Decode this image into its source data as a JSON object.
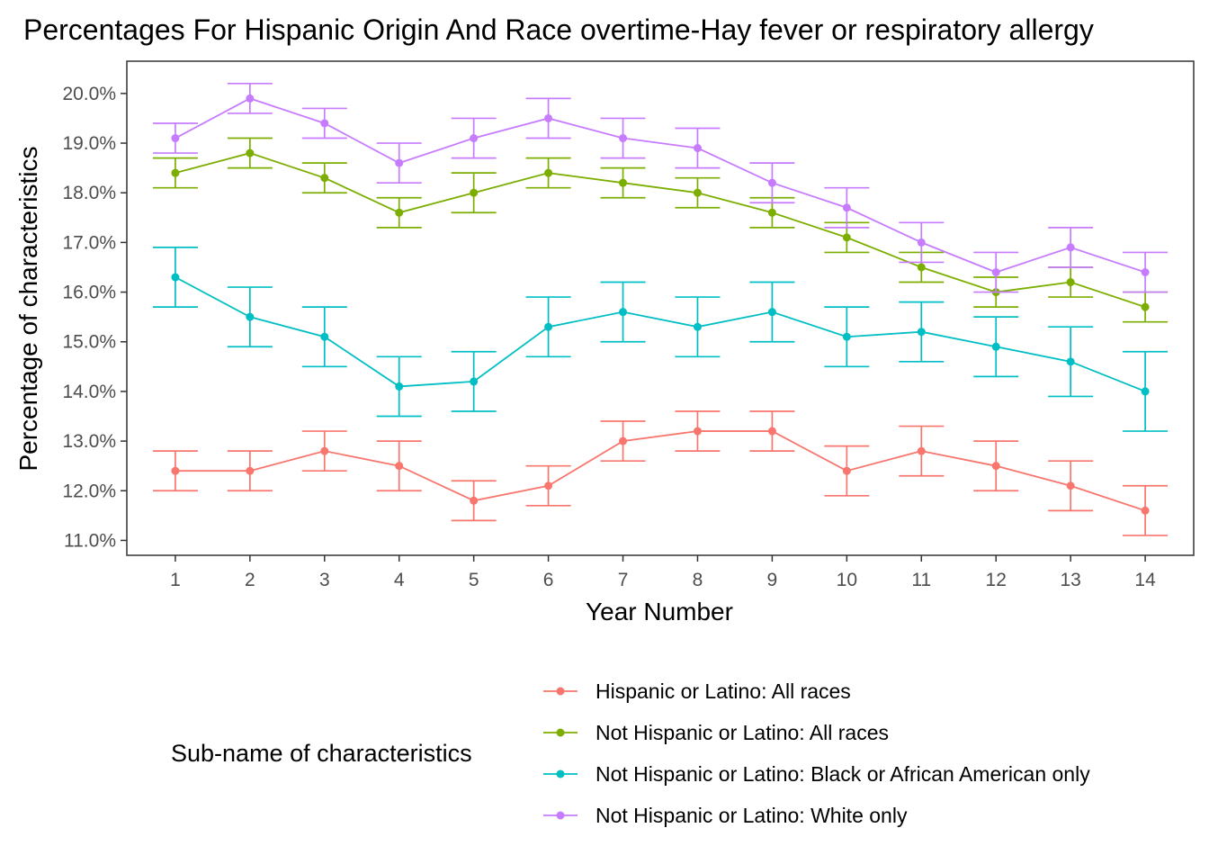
{
  "chart_data": {
    "type": "line",
    "title": "Percentages For Hispanic Origin And Race overtime-Hay fever or respiratory allergy",
    "xlabel": "Year Number",
    "ylabel": "Percentage of characteristics",
    "x": [
      1,
      2,
      3,
      4,
      5,
      6,
      7,
      8,
      9,
      10,
      11,
      12,
      13,
      14
    ],
    "x_ticks": [
      "1",
      "2",
      "3",
      "4",
      "5",
      "6",
      "7",
      "8",
      "9",
      "10",
      "11",
      "12",
      "13",
      "14"
    ],
    "xlim": [
      0.35,
      14.65
    ],
    "ylim": [
      10.7,
      20.65
    ],
    "y_ticks": [
      11,
      12,
      13,
      14,
      15,
      16,
      17,
      18,
      19,
      20
    ],
    "y_tick_labels": [
      "11.0%",
      "12.0%",
      "13.0%",
      "14.0%",
      "15.0%",
      "16.0%",
      "17.0%",
      "18.0%",
      "19.0%",
      "20.0%"
    ],
    "grid": false,
    "legend": {
      "title": "Sub-name of characteristics",
      "position": "bottom"
    },
    "series": [
      {
        "name": "Hispanic or Latino: All races",
        "color": "#F8766D",
        "values": [
          12.4,
          12.4,
          12.8,
          12.5,
          11.8,
          12.1,
          13.0,
          13.2,
          13.2,
          12.4,
          12.8,
          12.5,
          12.1,
          11.6
        ],
        "lower": [
          12.0,
          12.0,
          12.4,
          12.0,
          11.4,
          11.7,
          12.6,
          12.8,
          12.8,
          11.9,
          12.3,
          12.0,
          11.6,
          11.1
        ],
        "upper": [
          12.8,
          12.8,
          13.2,
          13.0,
          12.2,
          12.5,
          13.4,
          13.6,
          13.6,
          12.9,
          13.3,
          13.0,
          12.6,
          12.1
        ]
      },
      {
        "name": "Not Hispanic or Latino: All races",
        "color": "#7CAE00",
        "values": [
          18.4,
          18.8,
          18.3,
          17.6,
          18.0,
          18.4,
          18.2,
          18.0,
          17.6,
          17.1,
          16.5,
          16.0,
          16.2,
          15.7
        ],
        "lower": [
          18.1,
          18.5,
          18.0,
          17.3,
          17.6,
          18.1,
          17.9,
          17.7,
          17.3,
          16.8,
          16.2,
          15.7,
          15.9,
          15.4
        ],
        "upper": [
          18.7,
          19.1,
          18.6,
          17.9,
          18.4,
          18.7,
          18.5,
          18.3,
          17.9,
          17.4,
          16.8,
          16.3,
          16.5,
          16.0
        ]
      },
      {
        "name": "Not Hispanic or Latino: Black or African American only",
        "color": "#00BFC4",
        "values": [
          16.3,
          15.5,
          15.1,
          14.1,
          14.2,
          15.3,
          15.6,
          15.3,
          15.6,
          15.1,
          15.2,
          14.9,
          14.6,
          14.0
        ],
        "lower": [
          15.7,
          14.9,
          14.5,
          13.5,
          13.6,
          14.7,
          15.0,
          14.7,
          15.0,
          14.5,
          14.6,
          14.3,
          13.9,
          13.2
        ],
        "upper": [
          16.9,
          16.1,
          15.7,
          14.7,
          14.8,
          15.9,
          16.2,
          15.9,
          16.2,
          15.7,
          15.8,
          15.5,
          15.3,
          14.8
        ]
      },
      {
        "name": "Not Hispanic or Latino: White only",
        "color": "#C77CFF",
        "values": [
          19.1,
          19.9,
          19.4,
          18.6,
          19.1,
          19.5,
          19.1,
          18.9,
          18.2,
          17.7,
          17.0,
          16.4,
          16.9,
          16.4
        ],
        "lower": [
          18.8,
          19.6,
          19.1,
          18.2,
          18.7,
          19.1,
          18.7,
          18.5,
          17.8,
          17.3,
          16.6,
          16.0,
          16.5,
          16.0
        ],
        "upper": [
          19.4,
          20.2,
          19.7,
          19.0,
          19.5,
          19.9,
          19.5,
          19.3,
          18.6,
          18.1,
          17.4,
          16.8,
          17.3,
          16.8
        ]
      }
    ]
  }
}
